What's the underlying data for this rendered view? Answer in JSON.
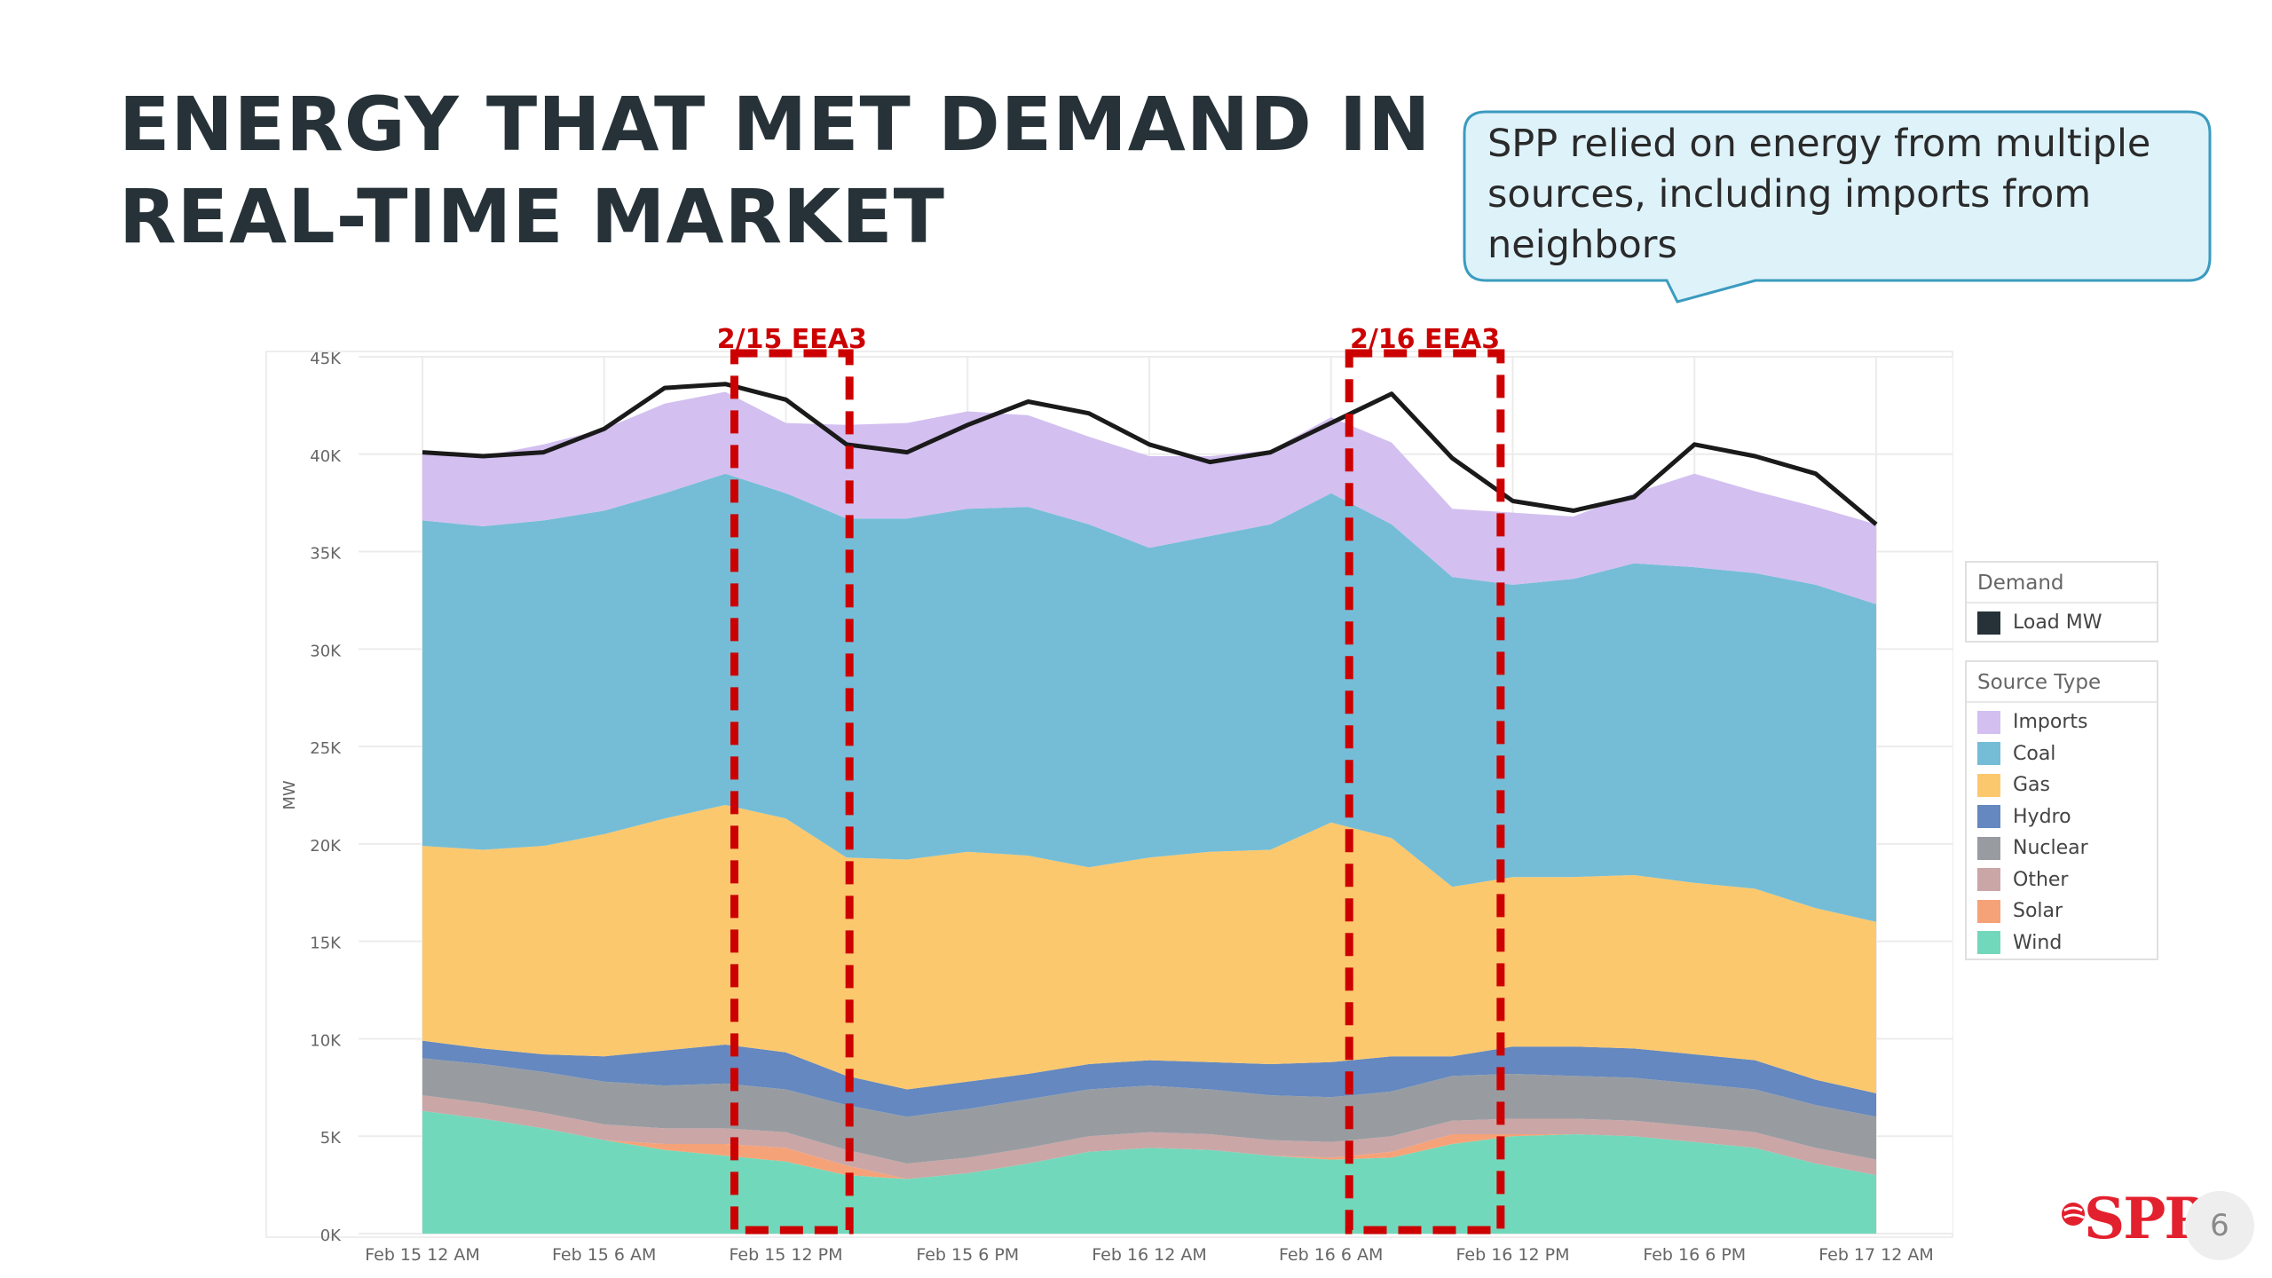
{
  "slide": {
    "title_line1": "ENERGY THAT MET DEMAND IN",
    "title_line2": "REAL-TIME MARKET",
    "callout": "SPP relied on energy from multiple sources, including imports from neighbors",
    "logo_text": "SPP",
    "page_number": "6"
  },
  "legend": {
    "demand_title": "Demand",
    "demand_item": "Load MW",
    "source_title": "Source Type"
  },
  "colors": {
    "Imports": "#d3bff0",
    "Coal": "#75bdd6",
    "Gas": "#fcc86e",
    "Hydro": "#6488bf",
    "Nuclear": "#989ca1",
    "Other": "#cba6a6",
    "Solar": "#f6a278",
    "Wind": "#72d8bb",
    "Load": "#1a1a1a",
    "EEA": "#cc0000"
  },
  "chart_data": {
    "type": "area",
    "stacked": true,
    "ylabel": "MW",
    "xlabel": "",
    "ylim": [
      0,
      45000
    ],
    "yticks": [
      "0K",
      "5K",
      "10K",
      "15K",
      "20K",
      "25K",
      "30K",
      "35K",
      "40K",
      "45K"
    ],
    "x_hours": [
      0,
      2,
      4,
      6,
      8,
      10,
      12,
      14,
      16,
      18,
      20,
      22,
      24,
      26,
      28,
      30,
      32,
      34,
      36,
      38,
      40,
      42,
      44,
      46,
      48
    ],
    "x_ticks": [
      {
        "label": "Feb 15 12 AM",
        "hour": 0
      },
      {
        "label": "Feb 15 6 AM",
        "hour": 6
      },
      {
        "label": "Feb 15 12 PM",
        "hour": 12
      },
      {
        "label": "Feb 15 6 PM",
        "hour": 18
      },
      {
        "label": "Feb 16 12 AM",
        "hour": 24
      },
      {
        "label": "Feb 16 6 AM",
        "hour": 30
      },
      {
        "label": "Feb 16 12 PM",
        "hour": 36
      },
      {
        "label": "Feb 16 6 PM",
        "hour": 42
      },
      {
        "label": "Feb 17 12 AM",
        "hour": 48
      }
    ],
    "series": [
      {
        "name": "Wind",
        "values": [
          6300,
          5900,
          5400,
          4800,
          4300,
          4000,
          3700,
          3000,
          2800,
          3100,
          3600,
          4200,
          4400,
          4300,
          4000,
          3800,
          3900,
          4600,
          5000,
          5100,
          5000,
          4700,
          4400,
          3600,
          3000
        ]
      },
      {
        "name": "Solar",
        "values": [
          0,
          0,
          0,
          0,
          300,
          600,
          700,
          500,
          0,
          0,
          0,
          0,
          0,
          0,
          0,
          100,
          300,
          500,
          100,
          0,
          0,
          0,
          0,
          0,
          0
        ]
      },
      {
        "name": "Other",
        "values": [
          800,
          800,
          800,
          800,
          800,
          800,
          800,
          800,
          800,
          800,
          800,
          800,
          800,
          800,
          800,
          800,
          800,
          700,
          800,
          800,
          800,
          800,
          800,
          800,
          800
        ]
      },
      {
        "name": "Nuclear",
        "values": [
          1900,
          2000,
          2100,
          2200,
          2200,
          2300,
          2200,
          2300,
          2400,
          2500,
          2500,
          2400,
          2400,
          2300,
          2300,
          2300,
          2300,
          2300,
          2300,
          2200,
          2200,
          2200,
          2200,
          2200,
          2200
        ]
      },
      {
        "name": "Hydro",
        "values": [
          900,
          800,
          900,
          1300,
          1800,
          2000,
          1900,
          1500,
          1400,
          1400,
          1300,
          1300,
          1300,
          1400,
          1600,
          1800,
          1800,
          1000,
          1400,
          1500,
          1500,
          1500,
          1500,
          1300,
          1200
        ]
      },
      {
        "name": "Gas",
        "values": [
          10000,
          10200,
          10700,
          11400,
          11900,
          12300,
          12000,
          11200,
          11800,
          11800,
          11200,
          10100,
          10400,
          10800,
          11000,
          12300,
          11200,
          8700,
          8700,
          8700,
          8900,
          8800,
          8800,
          8800,
          8800
        ]
      },
      {
        "name": "Coal",
        "values": [
          16700,
          16600,
          16700,
          16600,
          16700,
          17000,
          16700,
          17400,
          17500,
          17600,
          17900,
          17600,
          15900,
          16200,
          16700,
          16900,
          16100,
          15900,
          15000,
          15300,
          16000,
          16200,
          16200,
          16600,
          16300
        ]
      },
      {
        "name": "Imports",
        "values": [
          3500,
          3600,
          3900,
          4200,
          4600,
          4200,
          3600,
          4800,
          4900,
          5000,
          4700,
          4500,
          4700,
          4100,
          3800,
          3900,
          4200,
          3500,
          3700,
          3200,
          3600,
          4800,
          4200,
          4000,
          4100
        ]
      }
    ],
    "load": {
      "name": "Load MW",
      "values": [
        40100,
        39900,
        40100,
        41300,
        43400,
        43600,
        42800,
        40500,
        40100,
        41500,
        42700,
        42100,
        40500,
        39600,
        40100,
        41600,
        43100,
        39800,
        37600,
        37100,
        37800,
        40500,
        39900,
        39000,
        36400
      ]
    },
    "annotations": [
      {
        "label": "2/15 EEA3",
        "x_start": 10.3,
        "x_end": 14.1
      },
      {
        "label": "2/16 EEA3",
        "x_start": 30.6,
        "x_end": 35.6
      }
    ]
  }
}
